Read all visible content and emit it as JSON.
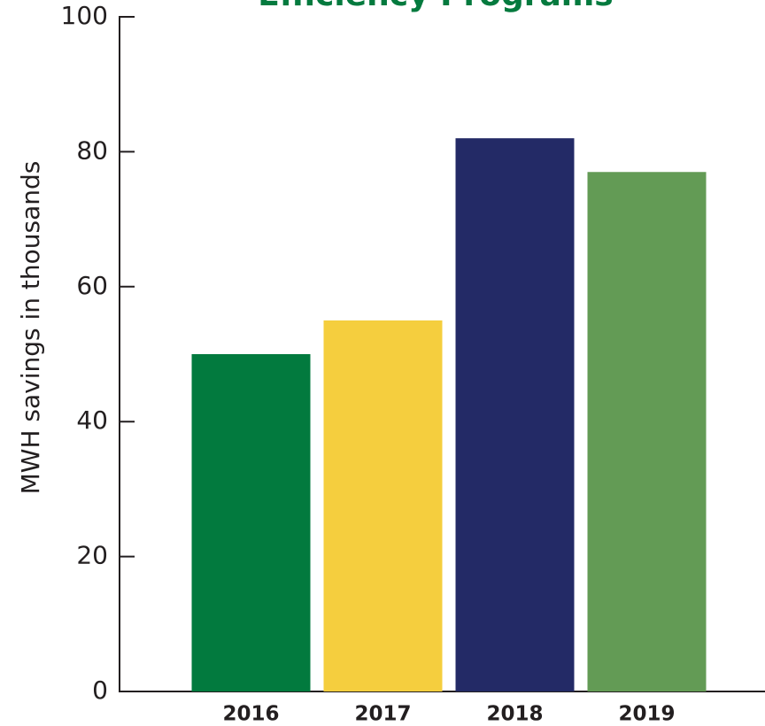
{
  "chart_data": {
    "type": "bar",
    "title": "Efficiency Programs",
    "y_label": "MWH savings in thousands",
    "categories": [
      "2016",
      "2017",
      "2018",
      "2019"
    ],
    "values": [
      50,
      55,
      82,
      77
    ],
    "colors": [
      "#027a3e",
      "#f5ce3e",
      "#232a66",
      "#639b55"
    ],
    "ylim": [
      0,
      100
    ],
    "yticks": [
      0,
      20,
      40,
      60,
      80,
      100
    ],
    "grid": false
  }
}
